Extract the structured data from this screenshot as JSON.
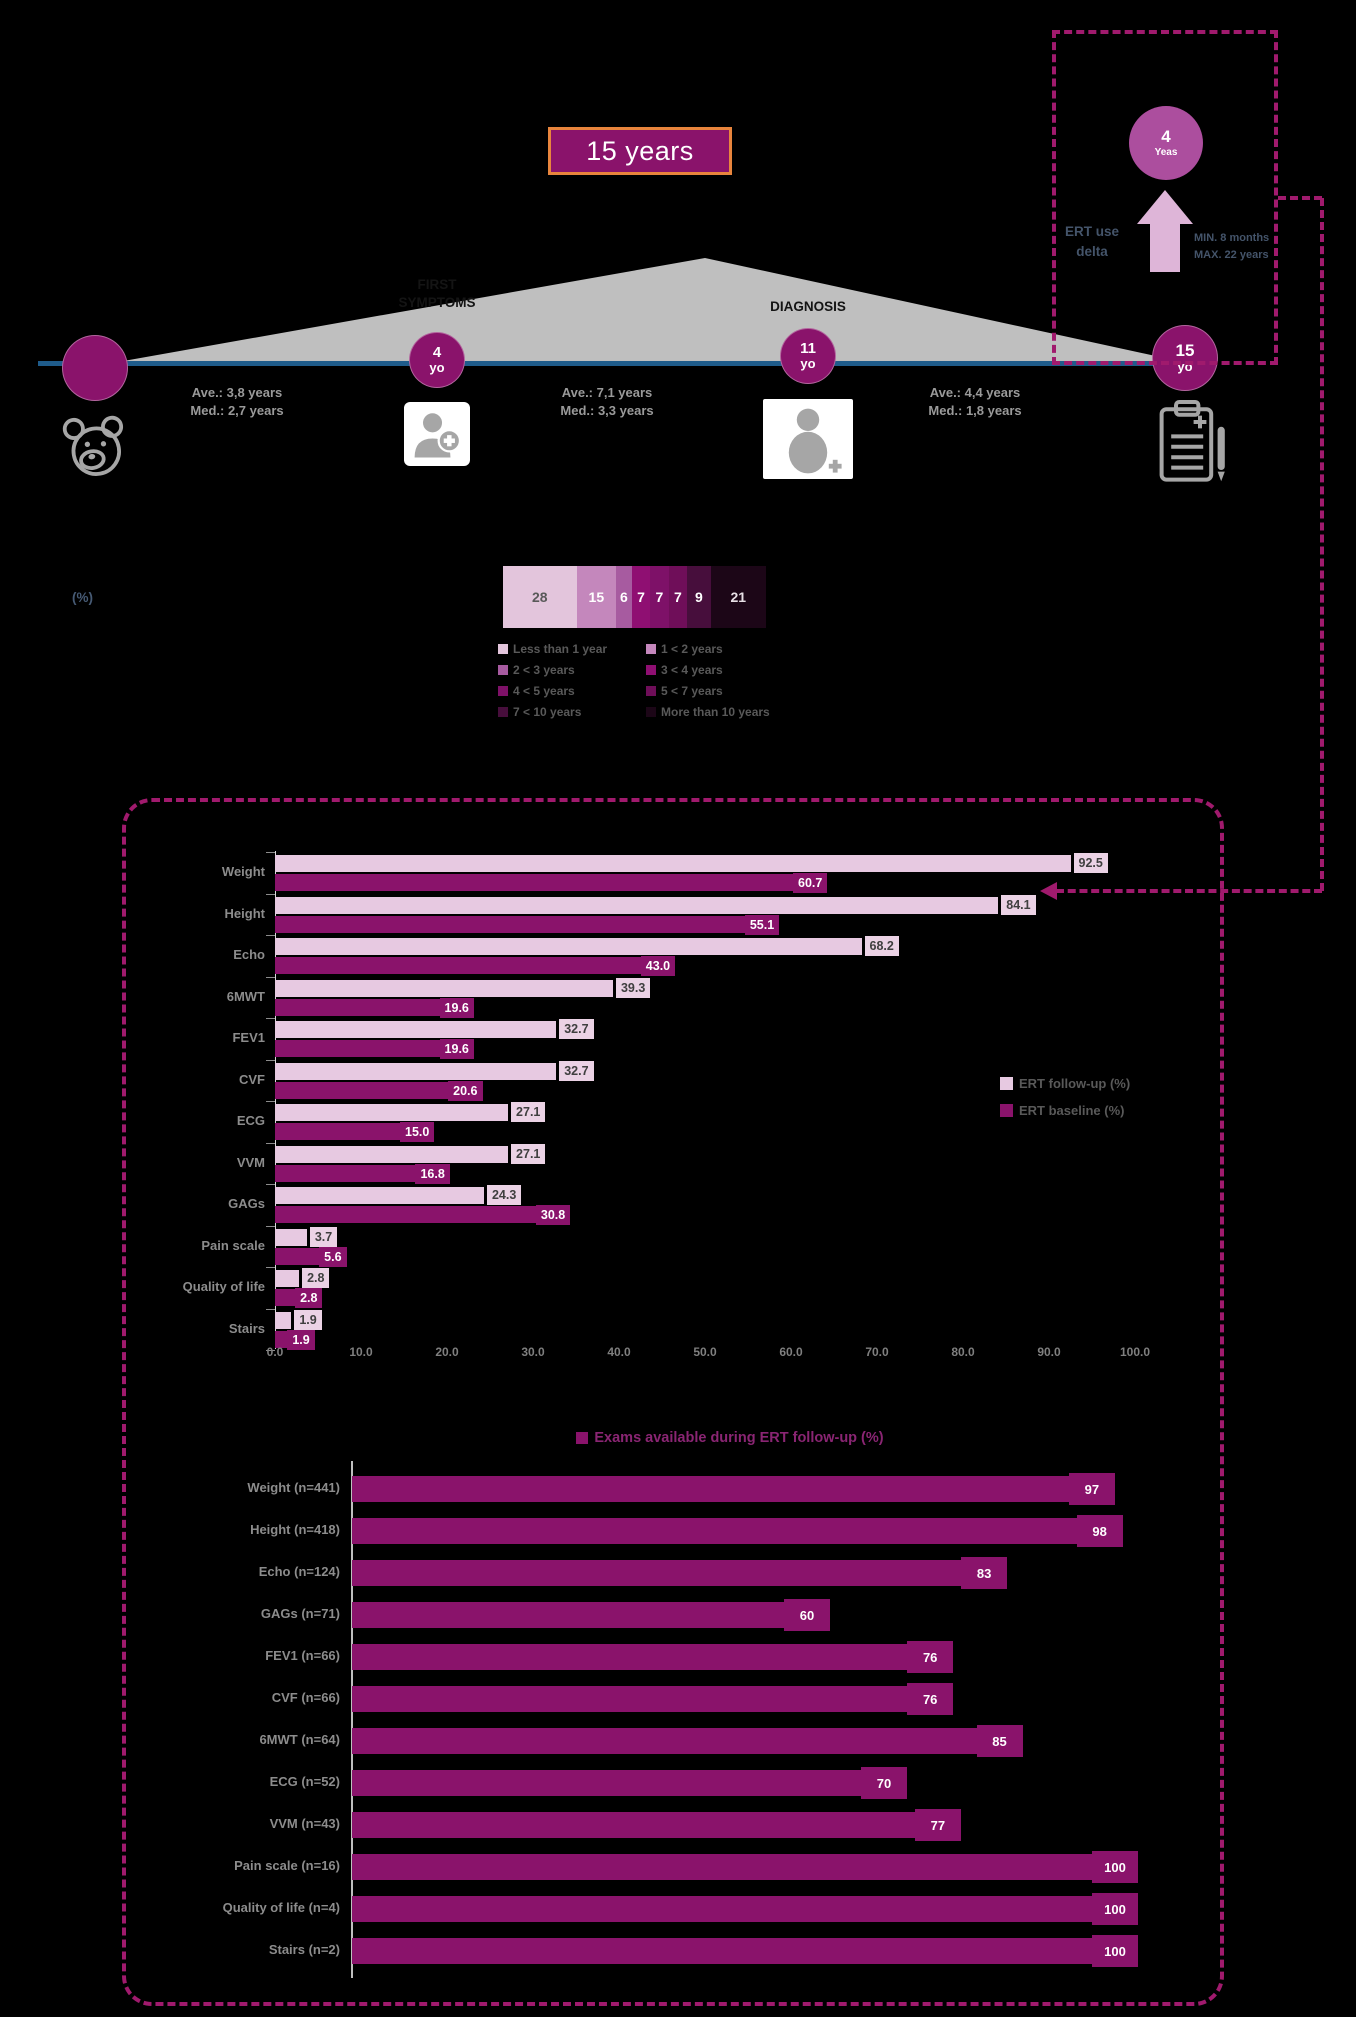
{
  "header": {
    "title": "15 years",
    "first_symptoms_label": "FIRST\nSYMPTOMS",
    "diagnosis_label": "DIAGNOSIS",
    "timeline_circles": [
      {
        "value": "",
        "sub": ""
      },
      {
        "value": "4",
        "sub": "yo"
      },
      {
        "value": "11",
        "sub": "yo"
      },
      {
        "value": "15",
        "sub": "yo"
      }
    ],
    "intervals": [
      {
        "ave": "Ave.: 3,8 years",
        "med": "Med.: 2,7 years"
      },
      {
        "ave": "Ave.: 7,1 years",
        "med": "Med.: 3,3 years"
      },
      {
        "ave": "Ave.: 4,4 years",
        "med": "Med.: 1,8 years"
      }
    ],
    "ert_box": {
      "circle_value": "4",
      "circle_sub": "Yeas",
      "delta_label": "ERT use\ndelta",
      "range_label": "MIN. 8 months\nMAX. 22 years"
    }
  },
  "distribution": {
    "unit_label": "(%)"
  },
  "chart_data": [
    {
      "type": "bar",
      "subtype": "horizontal-stacked",
      "title": "",
      "unit_label": "(%)",
      "segments": [
        {
          "label": "Less than 1 year",
          "value": 28,
          "color": "#E3C5DC",
          "text_color": "#595959"
        },
        {
          "label": "1 < 2 years",
          "value": 15,
          "color": "#C487BC",
          "text_color": "#FFFFFF"
        },
        {
          "label": "2 < 3 years",
          "value": 6,
          "color": "#A75BA0",
          "text_color": "#FFFFFF"
        },
        {
          "label": "3 < 4 years",
          "value": 7,
          "color": "#8F0F72",
          "text_color": "#FFFFFF"
        },
        {
          "label": "4 < 5 years",
          "value": 7,
          "color": "#7E1168",
          "text_color": "#FFFFFF"
        },
        {
          "label": "5 < 7 years",
          "value": 7,
          "color": "#6F0E59",
          "text_color": "#FFFFFF"
        },
        {
          "label": "7 < 10 years",
          "value": 9,
          "color": "#470E3C",
          "text_color": "#FFFFFF"
        },
        {
          "label": "More than 10 years",
          "value": 21,
          "color": "#1C0617",
          "text_color": "#E8E0E6"
        }
      ]
    },
    {
      "type": "bar",
      "subtype": "horizontal-grouped",
      "categories": [
        "Weight",
        "Height",
        "Echo",
        "6MWT",
        "FEV1",
        "CVF",
        "ECG",
        "VVM",
        "GAGs",
        "Pain scale",
        "Quality of life",
        "Stairs"
      ],
      "series": [
        {
          "name": "ERT follow-up (%)",
          "color": "#E7C9E1",
          "values": [
            92.5,
            84.1,
            68.2,
            39.3,
            32.7,
            32.7,
            27.1,
            27.1,
            24.3,
            3.7,
            2.8,
            1.9
          ],
          "labels": [
            "92.5",
            "84.1",
            "68.2",
            "39.3",
            "32.7",
            "32.7",
            "27.1",
            "27.1",
            "24.3",
            "3.7",
            "2.8",
            "1.9"
          ]
        },
        {
          "name": "ERT baseline (%)",
          "color": "#8A136B",
          "values": [
            60.7,
            55.1,
            43.0,
            19.6,
            19.6,
            20.6,
            15.0,
            16.8,
            30.8,
            5.6,
            2.8,
            1.9
          ],
          "labels": [
            "60.7",
            "55.1",
            "43.0",
            "19.6",
            "19.6",
            "20.6",
            "15.0",
            "16.8",
            "30.8",
            "5.6",
            "2.8",
            "1.9"
          ]
        }
      ],
      "xlim": [
        0,
        100
      ],
      "xticks": [
        "0.0",
        "10.0",
        "20.0",
        "30.0",
        "40.0",
        "50.0",
        "60.0",
        "70.0",
        "80.0",
        "90.0",
        "100.0"
      ],
      "legend_position": "right",
      "grid": false
    },
    {
      "type": "bar",
      "subtype": "horizontal",
      "title": "Exams available during ERT follow-up (%)",
      "categories": [
        "Weight (n=441)",
        "Height (n=418)",
        "Echo (n=124)",
        "GAGs (n=71)",
        "FEV1 (n=66)",
        "CVF (n=66)",
        "6MWT (n=64)",
        "ECG (n=52)",
        "VVM (n=43)",
        "Pain scale (n=16)",
        "Quality of life (n=4)",
        "Stairs (n=2)"
      ],
      "values": [
        97,
        98,
        83,
        60,
        76,
        76,
        85,
        70,
        77,
        100,
        100,
        100
      ],
      "labels": [
        "97",
        "98",
        "83",
        "60",
        "76",
        "76",
        "85",
        "70",
        "77",
        "100",
        "100",
        "100"
      ],
      "color": "#8A136B",
      "xlim": [
        0,
        100
      ],
      "grid": false
    }
  ],
  "colors": {
    "background": "#000000",
    "magenta_dark": "#8A136B",
    "pink_light": "#E7C9E1",
    "dashed_border": "#A01A6D",
    "circle_accent": "#AC4E9E",
    "arrow_pink": "#DEB5D8",
    "navy_text": "#44546A",
    "gray_text": "#9A9A9A",
    "timeline_blue": "#1F5C8B",
    "triangle_gray": "#BFBFBF",
    "title_border_orange": "#E8853D"
  }
}
